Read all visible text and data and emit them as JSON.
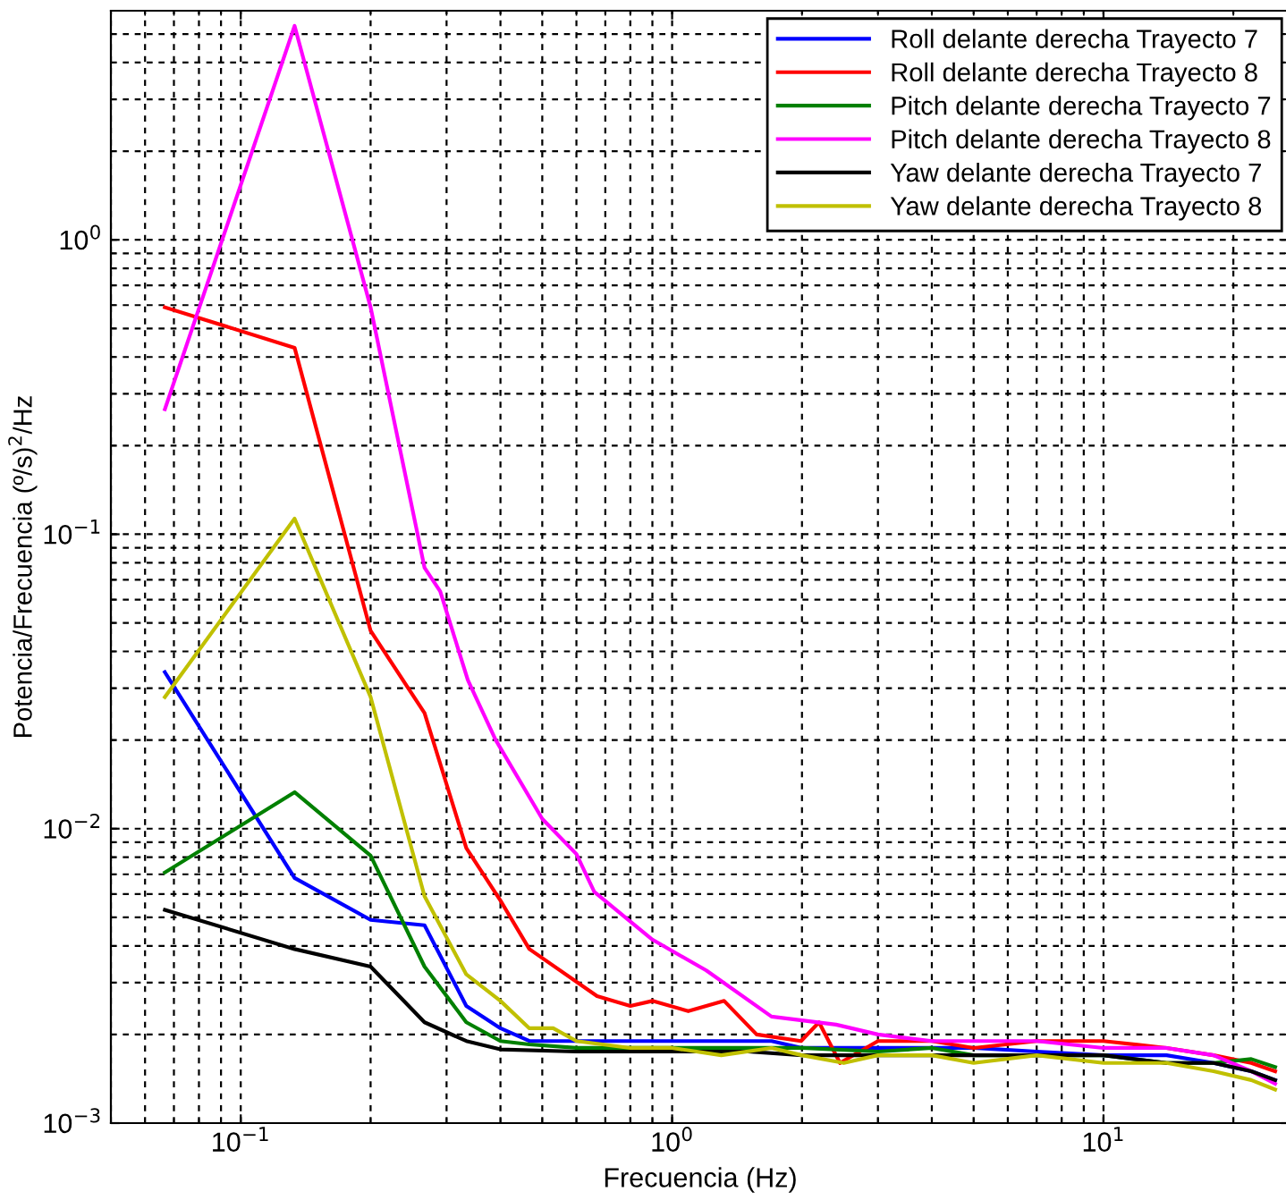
{
  "chart_data": {
    "type": "line",
    "xlabel": "Frecuencia (Hz)",
    "ylabel": "Potencia/Frecuencia (º/s)$^{2}$/Hz",
    "log": "xy",
    "grid": true,
    "legend": "top right",
    "line_style": "solid",
    "marker": "none",
    "xlim": [
      0.05,
      27
    ],
    "ylim": [
      0.001,
      6
    ],
    "xticks": [
      {
        "value": 0.1,
        "label": "10$^{−1}$"
      },
      {
        "value": 1,
        "label": "10$^{0}$"
      },
      {
        "value": 10,
        "label": "10$^{1}$"
      }
    ],
    "yticks": [
      {
        "value": 0.001,
        "label": "10$^{−3}$"
      },
      {
        "value": 0.01,
        "label": "10$^{−2}$"
      },
      {
        "value": 0.1,
        "label": "10$^{−1}$"
      },
      {
        "value": 1,
        "label": "10$^{0}$"
      }
    ],
    "series": [
      {
        "name": "Roll delante derecha Trayecto 7",
        "color": "#0000ff",
        "x": [
          0.0667,
          0.1333,
          0.2,
          0.2667,
          0.3333,
          0.4,
          0.4667,
          0.6,
          0.8,
          1.0,
          1.3,
          1.7,
          2.0,
          3,
          4,
          5,
          7,
          10,
          14,
          18,
          22,
          25
        ],
        "values": [
          0.034,
          0.0068,
          0.0049,
          0.0047,
          0.0025,
          0.0021,
          0.0019,
          0.0019,
          0.0019,
          0.0019,
          0.0019,
          0.0019,
          0.0018,
          0.0018,
          0.0018,
          0.0018,
          0.00175,
          0.0017,
          0.0017,
          0.0016,
          0.0015,
          0.0014
        ]
      },
      {
        "name": "Roll delante derecha Trayecto 8",
        "color": "#ff0000",
        "x": [
          0.0667,
          0.1333,
          0.2,
          0.2667,
          0.3333,
          0.4,
          0.4667,
          0.67,
          0.8,
          0.9,
          1.09,
          1.32,
          1.57,
          1.99,
          2.19,
          2.45,
          3,
          4,
          5,
          7,
          10,
          14,
          18,
          22,
          25
        ],
        "values": [
          0.59,
          0.43,
          0.047,
          0.0247,
          0.0086,
          0.0057,
          0.0039,
          0.0027,
          0.0025,
          0.0026,
          0.0024,
          0.0026,
          0.002,
          0.0019,
          0.0022,
          0.0016,
          0.0019,
          0.0019,
          0.0018,
          0.0019,
          0.0019,
          0.0018,
          0.0017,
          0.0016,
          0.0015
        ]
      },
      {
        "name": "Pitch delante derecha Trayecto 7",
        "color": "#008000",
        "x": [
          0.0667,
          0.1333,
          0.2,
          0.2667,
          0.3333,
          0.4,
          0.4667,
          0.6,
          0.8,
          1.0,
          1.5,
          2.0,
          3,
          4,
          5,
          7,
          10,
          14,
          18,
          22,
          25
        ],
        "values": [
          0.0071,
          0.0133,
          0.0081,
          0.0034,
          0.0022,
          0.0019,
          0.00185,
          0.0018,
          0.0018,
          0.0018,
          0.0018,
          0.0018,
          0.00175,
          0.0018,
          0.0017,
          0.0017,
          0.0017,
          0.0016,
          0.0016,
          0.00165,
          0.00155
        ]
      },
      {
        "name": "Pitch delante derecha Trayecto 8",
        "color": "#ff00ff",
        "x": [
          0.0667,
          0.1333,
          0.2,
          0.2667,
          0.29,
          0.336,
          0.39,
          0.5,
          0.6,
          0.66,
          0.9,
          1.2,
          1.7,
          2.4,
          3,
          4,
          5,
          7,
          10,
          14,
          18,
          22,
          25
        ],
        "values": [
          0.266,
          5.33,
          0.59,
          0.077,
          0.064,
          0.032,
          0.02,
          0.0108,
          0.0082,
          0.0061,
          0.0042,
          0.0033,
          0.0023,
          0.00216,
          0.002,
          0.0019,
          0.0019,
          0.0019,
          0.0018,
          0.0018,
          0.0017,
          0.0015,
          0.00136
        ]
      },
      {
        "name": "Yaw delante derecha Trayecto 7",
        "color": "#000000",
        "x": [
          0.0667,
          0.1333,
          0.2,
          0.2667,
          0.3333,
          0.4,
          0.6,
          1.0,
          1.5,
          2.0,
          3,
          5,
          7,
          10,
          14,
          18,
          22,
          25
        ],
        "values": [
          0.0053,
          0.0039,
          0.0034,
          0.0022,
          0.0019,
          0.00178,
          0.00175,
          0.00175,
          0.00175,
          0.0017,
          0.0017,
          0.0017,
          0.0017,
          0.0017,
          0.0016,
          0.0016,
          0.0015,
          0.0014
        ]
      },
      {
        "name": "Yaw delante derecha Trayecto 8",
        "color": "#c0c000",
        "x": [
          0.0667,
          0.1333,
          0.2,
          0.2667,
          0.3333,
          0.4,
          0.4667,
          0.53,
          0.6,
          0.8,
          1.0,
          1.3,
          1.7,
          2.0,
          2.5,
          3,
          4,
          5,
          7,
          10,
          14,
          18,
          22,
          25
        ],
        "values": [
          0.028,
          0.113,
          0.028,
          0.0059,
          0.0032,
          0.0026,
          0.0021,
          0.0021,
          0.0019,
          0.0018,
          0.0018,
          0.0017,
          0.0018,
          0.0017,
          0.0016,
          0.0017,
          0.0017,
          0.0016,
          0.0017,
          0.0016,
          0.0016,
          0.0015,
          0.0014,
          0.0013
        ]
      }
    ]
  }
}
